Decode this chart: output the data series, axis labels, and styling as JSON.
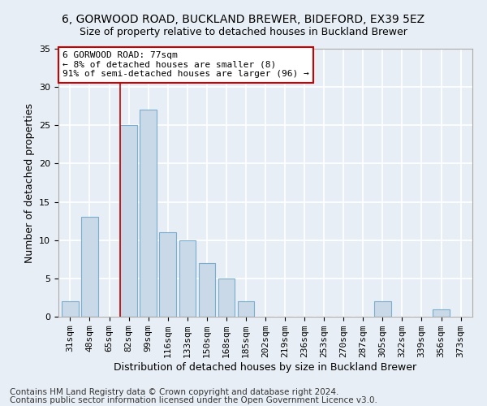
{
  "title1": "6, GORWOOD ROAD, BUCKLAND BREWER, BIDEFORD, EX39 5EZ",
  "title2": "Size of property relative to detached houses in Buckland Brewer",
  "xlabel": "Distribution of detached houses by size in Buckland Brewer",
  "ylabel": "Number of detached properties",
  "categories": [
    "31sqm",
    "48sqm",
    "65sqm",
    "82sqm",
    "99sqm",
    "116sqm",
    "133sqm",
    "150sqm",
    "168sqm",
    "185sqm",
    "202sqm",
    "219sqm",
    "236sqm",
    "253sqm",
    "270sqm",
    "287sqm",
    "305sqm",
    "322sqm",
    "339sqm",
    "356sqm",
    "373sqm"
  ],
  "values": [
    2,
    13,
    0,
    25,
    27,
    11,
    10,
    7,
    5,
    2,
    0,
    0,
    0,
    0,
    0,
    0,
    2,
    0,
    0,
    1,
    0
  ],
  "bar_color": "#c9d9e8",
  "bar_edge_color": "#7aaecf",
  "bg_color": "#e8eef5",
  "grid_color": "#ffffff",
  "annotation_box_text": "6 GORWOOD ROAD: 77sqm\n← 8% of detached houses are smaller (8)\n91% of semi-detached houses are larger (96) →",
  "annotation_box_color": "#ffffff",
  "annotation_box_edge_color": "#cc0000",
  "annotation_line_color": "#cc0000",
  "ylim": [
    0,
    35
  ],
  "yticks": [
    0,
    5,
    10,
    15,
    20,
    25,
    30,
    35
  ],
  "footer1": "Contains HM Land Registry data © Crown copyright and database right 2024.",
  "footer2": "Contains public sector information licensed under the Open Government Licence v3.0.",
  "title1_fontsize": 10,
  "title2_fontsize": 9,
  "xlabel_fontsize": 9,
  "ylabel_fontsize": 9,
  "tick_fontsize": 8,
  "footer_fontsize": 7.5
}
